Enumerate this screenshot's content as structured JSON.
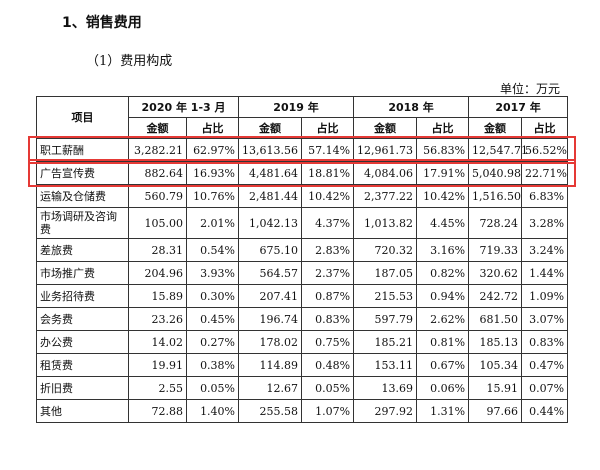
{
  "heading": "1、销售费用",
  "subheading": "（1）费用构成",
  "unit_text": "单位：万元",
  "table": {
    "item_header": "项目",
    "periods": [
      "2020 年 1-3 月",
      "2019 年",
      "2018 年",
      "2017 年"
    ],
    "amount_label": "金额",
    "ratio_label": "占比",
    "rows": [
      {
        "name": "职工薪酬",
        "values": [
          "3,282.21",
          "62.97%",
          "13,613.56",
          "57.14%",
          "12,961.73",
          "56.83%",
          "12,547.71",
          "56.52%"
        ]
      },
      {
        "name": "广告宣传费",
        "values": [
          "882.64",
          "16.93%",
          "4,481.64",
          "18.81%",
          "4,084.06",
          "17.91%",
          "5,040.98",
          "22.71%"
        ]
      },
      {
        "name": "运输及仓储费",
        "values": [
          "560.79",
          "10.76%",
          "2,481.44",
          "10.42%",
          "2,377.22",
          "10.42%",
          "1,516.50",
          "6.83%"
        ]
      },
      {
        "name": "市场调研及咨询费",
        "values": [
          "105.00",
          "2.01%",
          "1,042.13",
          "4.37%",
          "1,013.82",
          "4.45%",
          "728.24",
          "3.28%"
        ]
      },
      {
        "name": "差旅费",
        "values": [
          "28.31",
          "0.54%",
          "675.10",
          "2.83%",
          "720.32",
          "3.16%",
          "719.33",
          "3.24%"
        ]
      },
      {
        "name": "市场推广费",
        "values": [
          "204.96",
          "3.93%",
          "564.57",
          "2.37%",
          "187.05",
          "0.82%",
          "320.62",
          "1.44%"
        ]
      },
      {
        "name": "业务招待费",
        "values": [
          "15.89",
          "0.30%",
          "207.41",
          "0.87%",
          "215.53",
          "0.94%",
          "242.72",
          "1.09%"
        ]
      },
      {
        "name": "会务费",
        "values": [
          "23.26",
          "0.45%",
          "196.74",
          "0.83%",
          "597.79",
          "2.62%",
          "681.50",
          "3.07%"
        ]
      },
      {
        "name": "办公费",
        "values": [
          "14.02",
          "0.27%",
          "178.02",
          "0.75%",
          "185.21",
          "0.81%",
          "185.13",
          "0.83%"
        ]
      },
      {
        "name": "租赁费",
        "values": [
          "19.91",
          "0.38%",
          "114.89",
          "0.48%",
          "153.11",
          "0.67%",
          "105.34",
          "0.47%"
        ]
      },
      {
        "name": "折旧费",
        "values": [
          "2.55",
          "0.05%",
          "12.67",
          "0.05%",
          "13.69",
          "0.06%",
          "15.91",
          "0.07%"
        ]
      },
      {
        "name": "其他",
        "values": [
          "72.88",
          "1.40%",
          "255.58",
          "1.07%",
          "297.92",
          "1.31%",
          "97.66",
          "0.44%"
        ]
      }
    ]
  },
  "colors": {
    "highlight_box": "#e53935"
  }
}
